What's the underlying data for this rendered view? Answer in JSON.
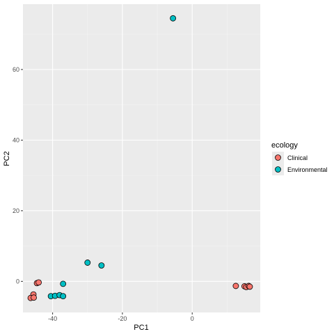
{
  "chart_data": {
    "type": "scatter",
    "title": "",
    "xlabel": "PC1",
    "ylabel": "PC2",
    "xlim": [
      -48.5,
      19.5
    ],
    "ylim": [
      -8.8,
      78.5
    ],
    "x_ticks": [
      -40,
      -20,
      0
    ],
    "x_tick_labels": [
      "-40",
      "-20",
      "0"
    ],
    "y_ticks": [
      0,
      20,
      40,
      60
    ],
    "y_tick_labels": [
      "0",
      "20",
      "40",
      "60"
    ],
    "grid": true,
    "legend": {
      "title": "ecology",
      "placement": "right"
    },
    "series": [
      {
        "name": "Clinical",
        "color": "#F8766D",
        "points": [
          {
            "x": -44.5,
            "y": -0.5
          },
          {
            "x": -44.0,
            "y": -0.3
          },
          {
            "x": -45.5,
            "y": -3.7
          },
          {
            "x": -46.3,
            "y": -4.7
          },
          {
            "x": -45.4,
            "y": -4.6
          },
          {
            "x": 12.5,
            "y": -1.3
          },
          {
            "x": 15.0,
            "y": -1.4
          },
          {
            "x": 15.5,
            "y": -1.6
          },
          {
            "x": 16.2,
            "y": -1.3
          },
          {
            "x": 16.5,
            "y": -1.5
          }
        ]
      },
      {
        "name": "Environmental",
        "color": "#00BFC4",
        "points": [
          {
            "x": -5.5,
            "y": 74.5
          },
          {
            "x": -30.0,
            "y": 5.3
          },
          {
            "x": -26.0,
            "y": 4.5
          },
          {
            "x": -37.0,
            "y": -0.7
          },
          {
            "x": -40.5,
            "y": -4.2
          },
          {
            "x": -39.3,
            "y": -4.1
          },
          {
            "x": -38.0,
            "y": -3.9
          },
          {
            "x": -37.0,
            "y": -4.2
          }
        ]
      }
    ]
  }
}
